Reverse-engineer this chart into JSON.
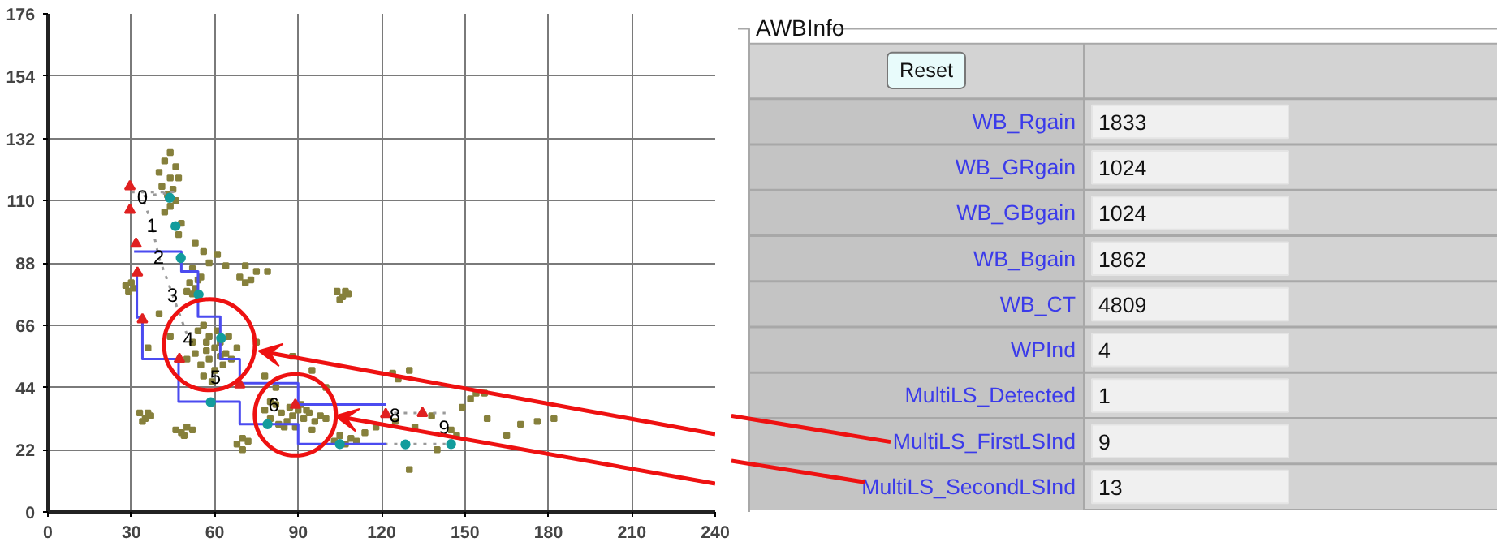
{
  "chart_data": [
    {
      "type": "scatter",
      "xlim": [
        0,
        240
      ],
      "ylim": [
        0,
        176
      ],
      "xticks": [
        0,
        30,
        60,
        90,
        120,
        150,
        180,
        210,
        240
      ],
      "yticks": [
        0,
        22,
        44,
        66,
        88,
        110,
        132,
        154,
        176
      ],
      "grid": true,
      "series": [
        {
          "type": "scatter",
          "marker": "square",
          "color": "#86803c",
          "x": [
            44,
            42,
            46,
            40,
            44,
            47,
            41,
            45,
            43,
            46,
            44,
            42,
            48,
            47,
            53,
            56,
            61,
            58,
            64,
            71,
            75,
            79,
            52,
            55,
            28,
            29,
            30,
            31,
            51,
            53,
            52,
            54,
            50,
            69,
            71,
            73,
            104,
            106,
            108,
            105,
            107,
            40,
            36,
            44,
            75,
            88,
            95,
            78,
            82,
            100,
            52,
            54,
            56,
            58,
            60,
            62,
            64,
            58,
            55,
            60,
            63,
            66,
            57,
            53,
            50,
            61,
            65,
            59,
            56,
            68,
            62,
            57,
            33,
            35,
            36,
            34,
            37,
            46,
            48,
            50,
            49,
            52,
            68,
            70,
            72,
            70,
            78,
            80,
            82,
            84,
            86,
            88,
            90,
            92,
            94,
            96,
            98,
            85,
            89,
            91,
            87,
            83,
            95,
            80,
            100,
            93,
            103,
            105,
            107,
            109,
            111,
            124,
            130,
            126,
            154,
            157,
            152,
            149,
            158,
            165,
            170,
            176,
            182,
            130,
            140,
            147,
            125,
            132,
            138,
            145,
            118,
            114
          ],
          "values": [
            127,
            124,
            122,
            120,
            118,
            118,
            115,
            114,
            112,
            110,
            108,
            106,
            102,
            98,
            95,
            92,
            91,
            88,
            87,
            87,
            85,
            85,
            86,
            83,
            80,
            78,
            81,
            79,
            81,
            79,
            77,
            82,
            78,
            83,
            81,
            82,
            78,
            76,
            77,
            75,
            78,
            70,
            58,
            62,
            60,
            55,
            50,
            48,
            44,
            44,
            60,
            64,
            66,
            62,
            58,
            60,
            56,
            54,
            52,
            50,
            52,
            54,
            57,
            56,
            54,
            64,
            62,
            46,
            48,
            58,
            55,
            60,
            35,
            33,
            35,
            32,
            34,
            29,
            28,
            30,
            27,
            29,
            24,
            22,
            25,
            26,
            36,
            33,
            38,
            35,
            32,
            34,
            36,
            33,
            35,
            32,
            34,
            30,
            30,
            38,
            37,
            31,
            29,
            39,
            33,
            36,
            25,
            27,
            24,
            26,
            25,
            49,
            50,
            47,
            42,
            42,
            40,
            37,
            33,
            27,
            31,
            32,
            33,
            15,
            22,
            27,
            32,
            30,
            34,
            29,
            30,
            28
          ]
        },
        {
          "type": "line",
          "line_style": "dotted",
          "color": "#9a9a9a",
          "x": [
            30,
            45,
            34,
            37.4,
            39.8,
            44.8,
            50.5
          ],
          "values": [
            113,
            113,
            111.5,
            101.5,
            90.3,
            76.8,
            61.4
          ]
        },
        {
          "type": "line",
          "line_style": "dotted",
          "color": "#9a9a9a",
          "x": [
            121,
            143
          ],
          "values": [
            35,
            35
          ]
        },
        {
          "type": "line",
          "line_style": "dotted",
          "color": "#9a9a9a",
          "x": [
            121,
            143
          ],
          "values": [
            24,
            24
          ]
        },
        {
          "type": "step",
          "line_style": "solid",
          "color": "#4b4bf0",
          "x": [
            31,
            48,
            54,
            62,
            69,
            90,
            121.5
          ],
          "values": [
            92,
            85,
            69,
            54,
            45.5,
            38,
            38
          ]
        },
        {
          "type": "step",
          "line_style": "solid",
          "color": "#4b4bf0",
          "x": [
            31,
            32,
            34,
            47,
            69,
            90,
            121.5
          ],
          "values": [
            84,
            68.7,
            54,
            39,
            31,
            24,
            24
          ]
        },
        {
          "type": "scatter",
          "marker": "triangle",
          "color": "#e02020",
          "x": [
            29.5,
            29.5,
            31.7,
            32.2,
            34,
            47.3,
            69,
            89,
            121.5,
            134.7
          ],
          "values": [
            115,
            106.7,
            94.7,
            84.5,
            68,
            54,
            45,
            37.8,
            34.5,
            34.9
          ]
        },
        {
          "type": "scatter",
          "marker": "circle",
          "color": "#139c9c",
          "x": [
            43.8,
            45.9,
            47.8,
            54.2,
            62.3,
            58.6,
            79,
            105,
            128.6,
            145
          ],
          "values": [
            111,
            101,
            89.7,
            76.8,
            61.4,
            38.8,
            31,
            24,
            23.9,
            24
          ]
        }
      ],
      "annotations": [
        {
          "text": "0",
          "x": 34,
          "y": 111.5
        },
        {
          "text": "1",
          "x": 37.4,
          "y": 101.5
        },
        {
          "text": "2",
          "x": 39.8,
          "y": 90.3
        },
        {
          "text": "3",
          "x": 44.8,
          "y": 76.8
        },
        {
          "text": "4",
          "x": 50.5,
          "y": 61.4
        },
        {
          "text": "5",
          "x": 60.3,
          "y": 47.9
        },
        {
          "text": "6",
          "x": 81.2,
          "y": 38.2
        },
        {
          "text": "8",
          "x": 124.8,
          "y": 34.5
        },
        {
          "text": "9",
          "x": 142.5,
          "y": 30.1
        }
      ]
    },
    {
      "type": "other",
      "title": "AWBInfo",
      "annotations": [
        "Reset"
      ],
      "data_labels": true,
      "categories": [
        "WB_Rgain",
        "WB_GRgain",
        "WB_GBgain",
        "WB_Bgain",
        "WB_CT",
        "WPInd",
        "MultiLS_Detected",
        "MultiLS_FirstLSInd",
        "MultiLS_SecondLSInd"
      ],
      "values": [
        1833,
        1024,
        1024,
        1862,
        4809,
        4,
        1,
        9,
        13
      ]
    }
  ]
}
